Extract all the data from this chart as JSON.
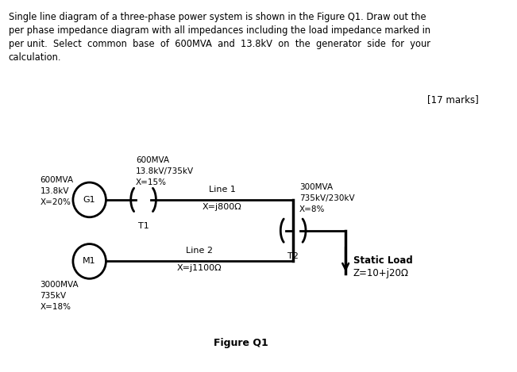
{
  "marks_text": "[17 marks]",
  "figure_label": "Figure Q1",
  "G1_label": "G1",
  "G1_specs": "600MVA\n13.8kV\nX=20%",
  "T1_label": "T1",
  "T1_specs": "600MVA\n13.8kV/735kV\nX=15%",
  "Line1_label": "Line 1",
  "Line1_imp": "X=j800Ω",
  "T2_label": "T2",
  "T2_specs": "300MVA\n735kV/230kV\nX=8%",
  "M1_label": "M1",
  "M1_specs": "3000MVA\n735kV\nX=18%",
  "Line2_label": "Line 2",
  "Line2_imp": "X=j1100Ω",
  "Load_label_bold": "Static Load",
  "Load_label_normal": "Z=10+j20Ω",
  "bg_color": "#ffffff",
  "text_color": "#000000",
  "line_color": "#000000",
  "header": [
    "Single line diagram of a three-phase power system is shown in the Figure Q1. Draw out the",
    "per phase impedance diagram with all impedances including the load impedance marked in",
    "per unit.  Select  common  base  of  600MVA  and  13.8kV  on  the  generator  side  for  your",
    "calculation."
  ]
}
